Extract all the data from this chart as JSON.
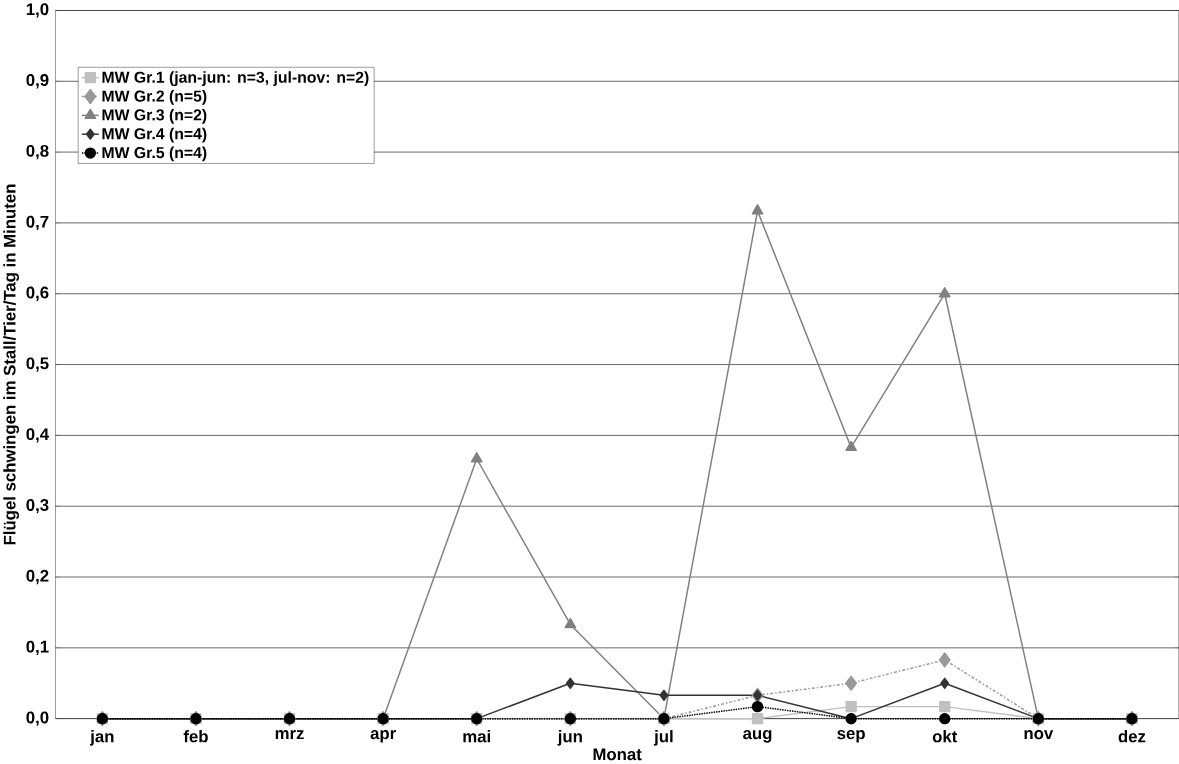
{
  "chart_data": {
    "type": "line",
    "xlabel": "Monat",
    "ylabel": "Flügel schwingen im Stall/Tier/Tag in Minuten",
    "categories": [
      "jan",
      "feb",
      "mrz",
      "apr",
      "mai",
      "jun",
      "jul",
      "aug",
      "sep",
      "okt",
      "nov",
      "dez"
    ],
    "series": [
      {
        "name": "MW Gr.1 (jan-jun: n=3, jul-nov: n=2)",
        "color": "#c0c0c0",
        "marker": "square",
        "line_style": "solid",
        "values": [
          0,
          0,
          0,
          0,
          0,
          0,
          0,
          0,
          0.017,
          0.017,
          0,
          0
        ]
      },
      {
        "name": "MW Gr.2 (n=5)",
        "color": "#999999",
        "marker": "diamond",
        "line_style": "dashed",
        "values": [
          0,
          0,
          0,
          0,
          0,
          0,
          0,
          0.033,
          0.05,
          0.083,
          0,
          0
        ]
      },
      {
        "name": "MW Gr.3 (n=2)",
        "color": "#808080",
        "marker": "triangle",
        "line_style": "solid",
        "values": [
          0,
          0,
          0,
          0,
          0.367,
          0.133,
          0,
          0.717,
          0.383,
          0.6,
          0,
          0
        ]
      },
      {
        "name": "MW Gr.4 (n=4)",
        "color": "#333333",
        "marker": "diamond",
        "line_style": "solid",
        "values": [
          0,
          0,
          0,
          0,
          0,
          0.05,
          0.033,
          0.033,
          0,
          0.05,
          0,
          0
        ]
      },
      {
        "name": "MW Gr.5 (n=4)",
        "color": "#000000",
        "marker": "circle",
        "line_style": "dotted",
        "values": [
          0,
          0,
          0,
          0,
          0,
          0,
          0,
          0.017,
          0,
          0,
          0,
          0
        ]
      }
    ],
    "ylim": [
      0,
      1
    ],
    "yticks": [
      {
        "value": 0,
        "label": "0,0"
      },
      {
        "value": 0.1,
        "label": "0,1"
      },
      {
        "value": 0.2,
        "label": "0,2"
      },
      {
        "value": 0.3,
        "label": "0,3"
      },
      {
        "value": 0.4,
        "label": "0,4"
      },
      {
        "value": 0.5,
        "label": "0,5"
      },
      {
        "value": 0.6,
        "label": "0,6"
      },
      {
        "value": 0.7,
        "label": "0,7"
      },
      {
        "value": 0.8,
        "label": "0,8"
      },
      {
        "value": 0.9,
        "label": "0,9"
      },
      {
        "value": 1,
        "label": "1,0"
      }
    ],
    "grid": "y",
    "legend": "top left"
  }
}
